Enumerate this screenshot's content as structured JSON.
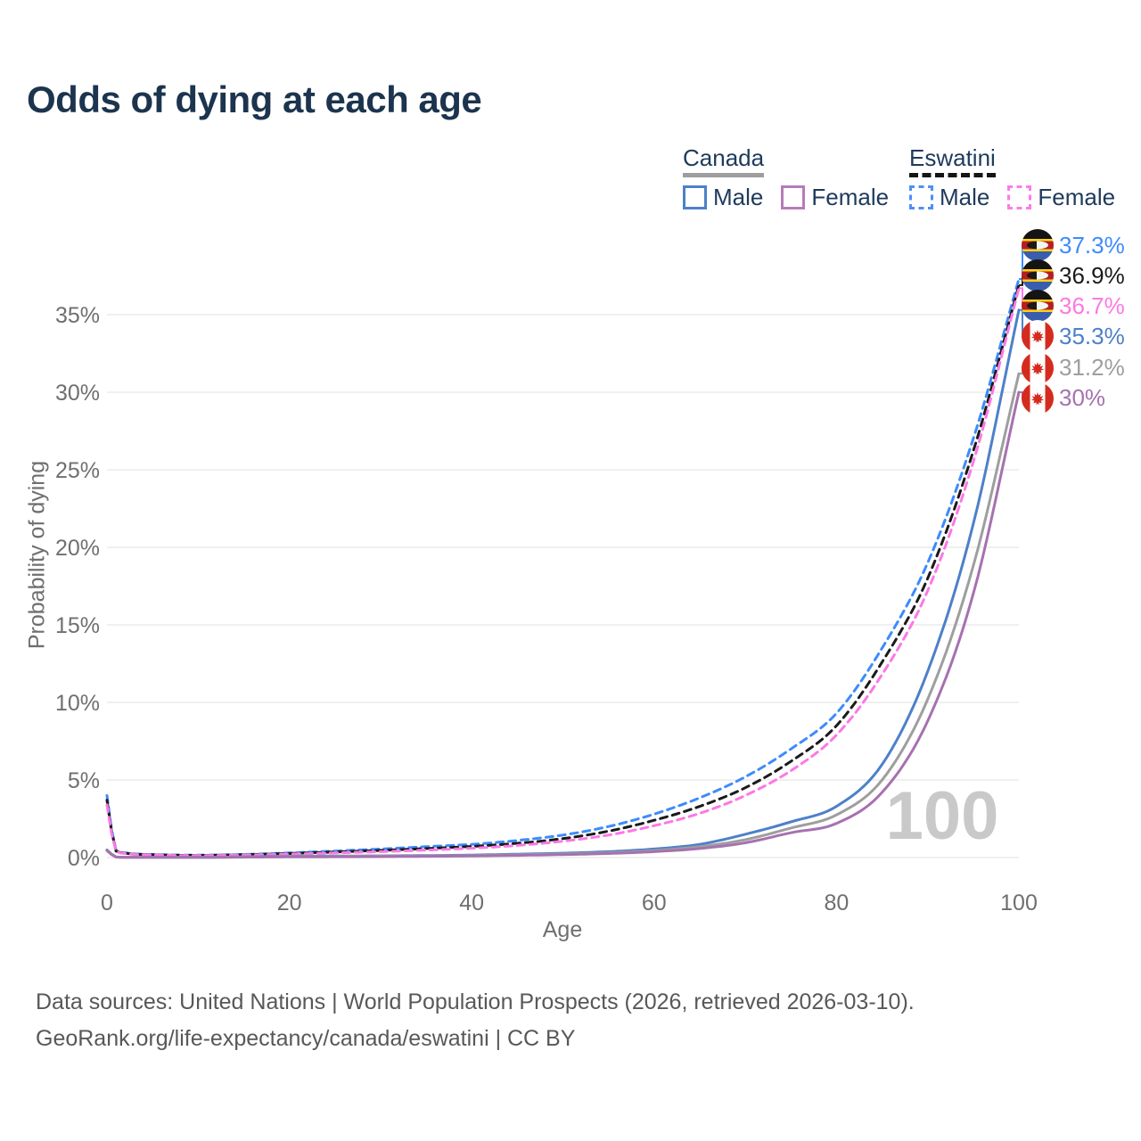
{
  "title": "Odds of dying at each age",
  "legend": {
    "groups": [
      {
        "name": "Canada",
        "line_style": "solid",
        "underline_color": "#9e9e9e",
        "items": [
          {
            "label": "Male",
            "color": "#4d80c9",
            "dashed": false
          },
          {
            "label": "Female",
            "color": "#b77bb9",
            "dashed": false
          }
        ]
      },
      {
        "name": "Eswatini",
        "line_style": "dashed",
        "underline_color": "#151515",
        "items": [
          {
            "label": "Male",
            "color": "#4f8ff7",
            "dashed": true
          },
          {
            "label": "Female",
            "color": "#fb7ce9",
            "dashed": true
          }
        ]
      }
    ]
  },
  "chart_data": {
    "type": "line",
    "title": "Odds of dying at each age",
    "xlabel": "Age",
    "ylabel": "Probability of dying",
    "xlim": [
      0,
      100
    ],
    "ylim": [
      0,
      39
    ],
    "x_ticks": [
      0,
      20,
      40,
      60,
      80,
      100
    ],
    "y_ticks": [
      0,
      5,
      10,
      15,
      20,
      25,
      30,
      35
    ],
    "y_tick_suffix": "%",
    "grid": "horizontal",
    "legend_position": "top-right",
    "hover_age_watermark": "100",
    "x": [
      0,
      1,
      2,
      5,
      10,
      15,
      20,
      25,
      30,
      35,
      40,
      45,
      50,
      55,
      60,
      65,
      70,
      75,
      80,
      85,
      90,
      95,
      100
    ],
    "series": [
      {
        "name": "Eswatini Male",
        "color": "#3d8bfd",
        "dashed": true,
        "flag": "eswatini",
        "end_label": "37.3%",
        "values": [
          4.0,
          0.45,
          0.3,
          0.2,
          0.16,
          0.2,
          0.3,
          0.42,
          0.55,
          0.7,
          0.85,
          1.1,
          1.45,
          2.0,
          2.8,
          3.85,
          5.2,
          7.0,
          9.3,
          13.5,
          19.0,
          27.0,
          37.3
        ]
      },
      {
        "name": "Eswatini",
        "color": "#1a1a1a",
        "dashed": true,
        "flag": "eswatini",
        "end_label": "36.9%",
        "values": [
          3.7,
          0.42,
          0.28,
          0.18,
          0.14,
          0.18,
          0.26,
          0.36,
          0.46,
          0.58,
          0.72,
          0.92,
          1.22,
          1.7,
          2.4,
          3.3,
          4.5,
          6.2,
          8.5,
          12.6,
          18.0,
          26.2,
          36.9
        ]
      },
      {
        "name": "Eswatini Female",
        "color": "#fc78e5",
        "dashed": true,
        "flag": "eswatini",
        "end_label": "36.7%",
        "values": [
          3.4,
          0.4,
          0.26,
          0.17,
          0.13,
          0.16,
          0.22,
          0.3,
          0.38,
          0.48,
          0.6,
          0.78,
          1.05,
          1.45,
          2.05,
          2.85,
          4.0,
          5.6,
          7.9,
          11.8,
          17.2,
          25.5,
          36.7
        ]
      },
      {
        "name": "Canada Male",
        "color": "#4d80c9",
        "dashed": false,
        "flag": "canada",
        "end_label": "35.3%",
        "values": [
          0.5,
          0.04,
          0.02,
          0.01,
          0.01,
          0.05,
          0.08,
          0.1,
          0.11,
          0.13,
          0.16,
          0.22,
          0.28,
          0.38,
          0.55,
          0.85,
          1.5,
          2.3,
          3.3,
          6.0,
          12.0,
          21.5,
          35.3
        ]
      },
      {
        "name": "Canada",
        "color": "#9e9e9e",
        "dashed": false,
        "flag": "canada",
        "end_label": "31.2%",
        "values": [
          0.48,
          0.035,
          0.02,
          0.01,
          0.01,
          0.04,
          0.06,
          0.08,
          0.09,
          0.1,
          0.13,
          0.18,
          0.23,
          0.31,
          0.45,
          0.7,
          1.15,
          1.9,
          2.75,
          5.0,
          10.2,
          18.8,
          31.2
        ]
      },
      {
        "name": "Canada Female",
        "color": "#a671b0",
        "dashed": false,
        "flag": "canada",
        "end_label": "30%",
        "values": [
          0.45,
          0.03,
          0.015,
          0.01,
          0.01,
          0.025,
          0.04,
          0.05,
          0.06,
          0.08,
          0.1,
          0.14,
          0.19,
          0.26,
          0.38,
          0.58,
          0.95,
          1.6,
          2.2,
          4.2,
          8.8,
          17.0,
          30.0
        ]
      }
    ]
  },
  "footer": {
    "line1": "Data sources: United Nations | World Population Prospects (2026, retrieved 2026-03-10).",
    "line2": "GeoRank.org/life-expectancy/canada/eswatini | CC BY"
  },
  "colors": {
    "title_text": "#1c344e",
    "legend_text": "#1e3a5c",
    "axis_text": "#6f6f6f",
    "grid": "#ececec",
    "watermark": "#c9c9c9",
    "footer_text": "#58585a"
  }
}
